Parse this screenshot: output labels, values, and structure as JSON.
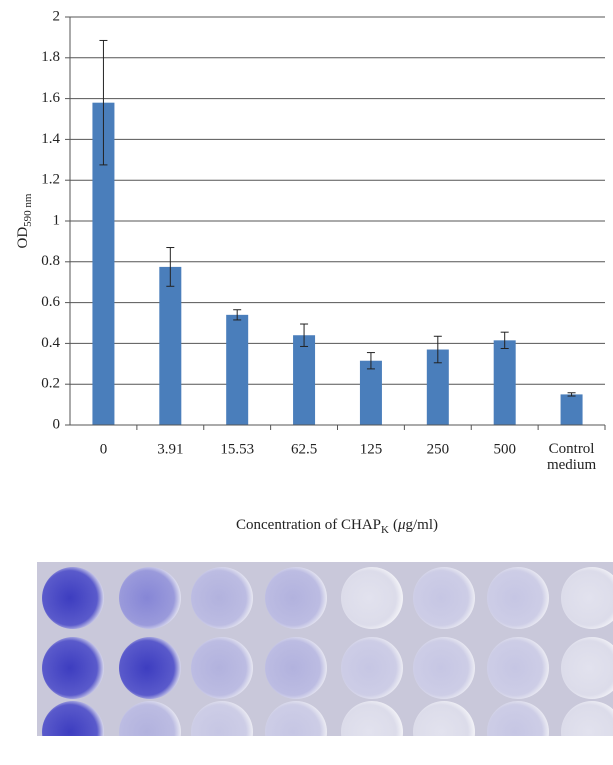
{
  "chart_data": {
    "type": "bar",
    "ylabel": "OD",
    "ylabel_sub": "590 nm",
    "xlabel": "Concentration of CHAP",
    "xlabel_sub": "K",
    "xlabel_unit_prefix": "(",
    "xlabel_unit_greek": "μ",
    "xlabel_unit_rest": "g/ml)",
    "categories": [
      "0",
      "3.91",
      "15.53",
      "62.5",
      "125",
      "250",
      "500",
      "Control medium"
    ],
    "values": [
      1.58,
      0.775,
      0.54,
      0.44,
      0.315,
      0.37,
      0.415,
      0.15
    ],
    "errors": [
      0.305,
      0.095,
      0.025,
      0.055,
      0.04,
      0.065,
      0.04,
      0.008
    ],
    "color": "#4a7ebb",
    "ylim": [
      0,
      2
    ],
    "yticks": [
      0,
      0.2,
      0.4,
      0.6,
      0.8,
      1,
      1.2,
      1.4,
      1.6,
      1.8,
      2
    ],
    "grid": true
  }
}
